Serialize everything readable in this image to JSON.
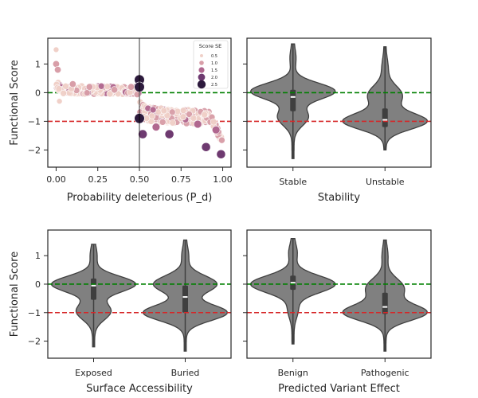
{
  "chart_data": [
    {
      "type": "scatter",
      "xlabel": "Probability deleterious (P_d)",
      "ylabel": "Functional Score",
      "xlim": [
        -0.05,
        1.05
      ],
      "ylim": [
        -2.6,
        1.9
      ],
      "xticks": [
        "0.00",
        "0.25",
        "0.50",
        "0.75",
        "1.00"
      ],
      "yticks": [
        "1",
        "0",
        "−1",
        "−2"
      ],
      "reference_lines": [
        {
          "axis": "y",
          "value": 0,
          "color": "#008000",
          "style": "dashed"
        },
        {
          "axis": "y",
          "value": -1,
          "color": "#d62728",
          "style": "dashed"
        },
        {
          "axis": "x",
          "value": 0.5,
          "color": "#000000",
          "style": "solid"
        }
      ],
      "legend": {
        "title": "Score SE",
        "position": "top-right",
        "entries": [
          "0.5",
          "1.0",
          "1.5",
          "2.0",
          "2.5"
        ]
      },
      "color_scale": [
        "#f0d0c8",
        "#d89ea8",
        "#b0678f",
        "#6e3a70",
        "#2d1a3d"
      ],
      "notable_points": [
        {
          "x": 0.0,
          "y": 1.5,
          "se": 0.5
        },
        {
          "x": 0.0,
          "y": 1.0,
          "se": 1.0
        },
        {
          "x": 0.01,
          "y": 0.8,
          "se": 1.0
        },
        {
          "x": 0.02,
          "y": -0.3,
          "se": 0.5
        },
        {
          "x": 0.1,
          "y": 0.3,
          "se": 1.0
        },
        {
          "x": 0.2,
          "y": 0.2,
          "se": 1.0
        },
        {
          "x": 0.35,
          "y": 0.1,
          "se": 1.0
        },
        {
          "x": 0.45,
          "y": 0.2,
          "se": 1.0
        },
        {
          "x": 0.5,
          "y": 0.45,
          "se": 2.5
        },
        {
          "x": 0.5,
          "y": 0.2,
          "se": 2.5
        },
        {
          "x": 0.5,
          "y": -0.9,
          "se": 2.5
        },
        {
          "x": 0.52,
          "y": -1.45,
          "se": 2.0
        },
        {
          "x": 0.6,
          "y": -1.2,
          "se": 1.5
        },
        {
          "x": 0.68,
          "y": -1.45,
          "se": 2.0
        },
        {
          "x": 0.85,
          "y": -1.1,
          "se": 1.5
        },
        {
          "x": 0.9,
          "y": -1.9,
          "se": 2.0
        },
        {
          "x": 0.96,
          "y": -1.3,
          "se": 1.5
        },
        {
          "x": 0.99,
          "y": -2.15,
          "se": 2.0
        }
      ]
    },
    {
      "type": "violin",
      "xlabel": "Stability",
      "ylabel": "",
      "ylim": [
        -2.6,
        1.9
      ],
      "categories": [
        "Stable",
        "Unstable"
      ],
      "series": [
        {
          "category": "Stable",
          "min": -2.3,
          "max": 1.7,
          "q1": -0.65,
          "median": -0.15,
          "q3": 0.1
        },
        {
          "category": "Unstable",
          "min": -2.0,
          "max": 1.6,
          "q1": -1.2,
          "median": -0.95,
          "q3": -0.55
        }
      ],
      "reference_lines": [
        {
          "axis": "y",
          "value": 0,
          "color": "#008000",
          "style": "dashed"
        },
        {
          "axis": "y",
          "value": -1,
          "color": "#d62728",
          "style": "dashed"
        }
      ]
    },
    {
      "type": "violin",
      "xlabel": "Surface Accessibility",
      "ylabel": "Functional Score",
      "ylim": [
        -2.6,
        1.9
      ],
      "yticks": [
        "1",
        "0",
        "−1",
        "−2"
      ],
      "categories": [
        "Exposed",
        "Buried"
      ],
      "series": [
        {
          "category": "Exposed",
          "min": -2.2,
          "max": 1.4,
          "q1": -0.55,
          "median": -0.05,
          "q3": 0.2
        },
        {
          "category": "Buried",
          "min": -2.35,
          "max": 1.55,
          "q1": -1.0,
          "median": -0.45,
          "q3": -0.05
        }
      ],
      "reference_lines": [
        {
          "axis": "y",
          "value": 0,
          "color": "#008000",
          "style": "dashed"
        },
        {
          "axis": "y",
          "value": -1,
          "color": "#d62728",
          "style": "dashed"
        }
      ]
    },
    {
      "type": "violin",
      "xlabel": "Predicted Variant Effect",
      "ylabel": "",
      "ylim": [
        -2.6,
        1.9
      ],
      "categories": [
        "Benign",
        "Pathogenic"
      ],
      "series": [
        {
          "category": "Benign",
          "min": -2.1,
          "max": 1.6,
          "q1": -0.2,
          "median": 0.05,
          "q3": 0.3
        },
        {
          "category": "Pathogenic",
          "min": -2.35,
          "max": 1.55,
          "q1": -1.05,
          "median": -0.8,
          "q3": -0.3
        }
      ],
      "reference_lines": [
        {
          "axis": "y",
          "value": 0,
          "color": "#008000",
          "style": "dashed"
        },
        {
          "axis": "y",
          "value": -1,
          "color": "#d62728",
          "style": "dashed"
        }
      ]
    }
  ]
}
